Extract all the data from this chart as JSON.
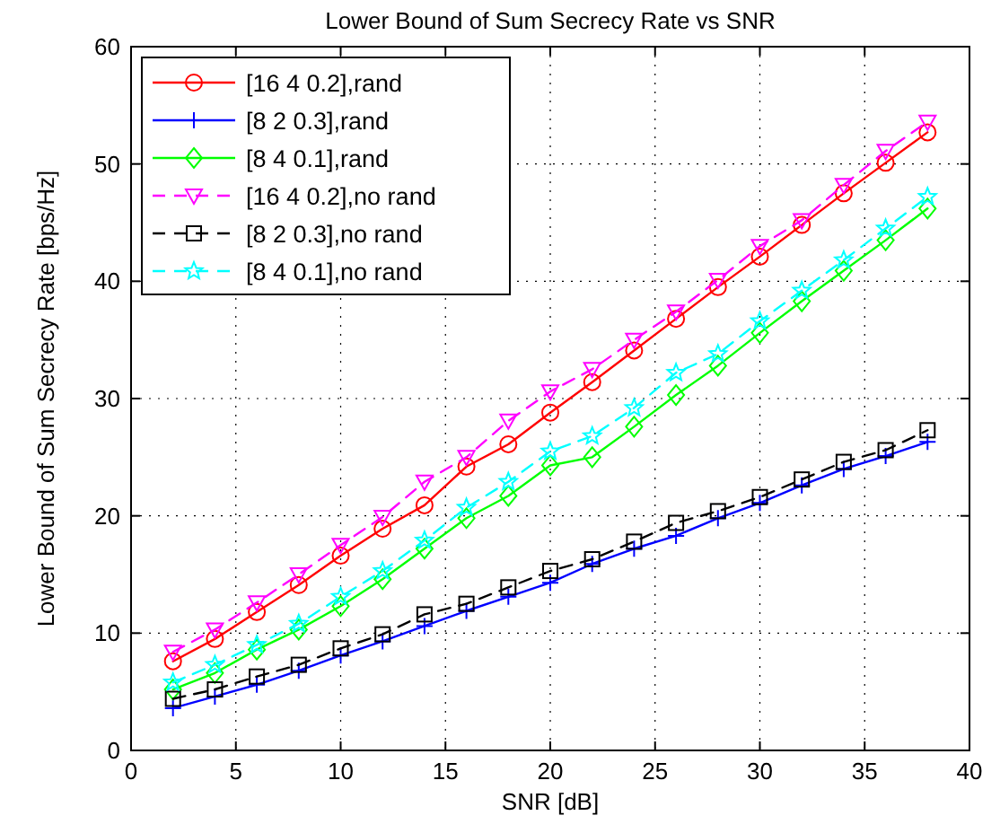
{
  "chart_data": {
    "type": "line",
    "title": "Lower Bound of Sum Secrecy Rate vs SNR",
    "xlabel": "SNR [dB]",
    "ylabel": "Lower Bound of Sum Secrecy Rate [bps/Hz]",
    "x": [
      2,
      4,
      6,
      8,
      10,
      12,
      14,
      16,
      18,
      20,
      22,
      24,
      26,
      28,
      30,
      32,
      34,
      36,
      38
    ],
    "xlim": [
      0,
      40
    ],
    "xticks": [
      0,
      5,
      10,
      15,
      20,
      25,
      30,
      35,
      40
    ],
    "ylim": [
      0,
      60
    ],
    "yticks": [
      0,
      10,
      20,
      30,
      40,
      50,
      60
    ],
    "grid": true,
    "legend": "top left",
    "series": [
      {
        "name": "[16 4 0.2],rand",
        "color": "#ff0000",
        "marker": "circle",
        "line_style": "solid",
        "values": [
          7.6,
          9.5,
          11.8,
          14.1,
          16.6,
          18.9,
          20.9,
          24.2,
          26.1,
          28.8,
          31.4,
          34.1,
          36.8,
          39.5,
          42.1,
          44.8,
          47.5,
          50.1,
          52.7
        ]
      },
      {
        "name": "[8 2 0.3],rand",
        "color": "#0000ff",
        "marker": "cross",
        "line_style": "solid",
        "values": [
          3.6,
          4.6,
          5.6,
          6.8,
          8.1,
          9.3,
          10.6,
          11.9,
          13.1,
          14.3,
          15.9,
          17.2,
          18.3,
          19.8,
          21.1,
          22.6,
          24.0,
          25.1,
          26.3
        ]
      },
      {
        "name": "[8 4 0.1],rand",
        "color": "#00ff00",
        "marker": "diamond",
        "line_style": "solid",
        "values": [
          5.2,
          6.6,
          8.6,
          10.3,
          12.3,
          14.6,
          17.2,
          19.8,
          21.7,
          24.3,
          25.0,
          27.6,
          30.3,
          32.8,
          35.6,
          38.3,
          40.9,
          43.5,
          46.2
        ]
      },
      {
        "name": "[16 4 0.2],no rand",
        "color": "#ff00ff",
        "marker": "triangle",
        "line_style": "dashed",
        "values": [
          8.4,
          10.3,
          12.6,
          15.0,
          17.5,
          19.9,
          22.9,
          25.0,
          28.1,
          30.6,
          32.5,
          35.0,
          37.4,
          40.1,
          43.0,
          45.2,
          48.2,
          51.1,
          53.6
        ]
      },
      {
        "name": "[8 2 0.3],no rand",
        "color": "#000000",
        "marker": "square",
        "line_style": "dashed",
        "values": [
          4.4,
          5.2,
          6.3,
          7.3,
          8.7,
          9.9,
          11.6,
          12.5,
          13.9,
          15.3,
          16.3,
          17.8,
          19.4,
          20.4,
          21.6,
          23.1,
          24.6,
          25.6,
          27.3
        ]
      },
      {
        "name": "[8 4 0.1],no rand",
        "color": "#00ffff",
        "marker": "star",
        "line_style": "dashed",
        "values": [
          5.8,
          7.3,
          9.0,
          10.8,
          13.1,
          15.3,
          17.9,
          20.7,
          22.9,
          25.5,
          26.8,
          29.2,
          32.2,
          33.8,
          36.6,
          39.2,
          41.8,
          44.5,
          47.2
        ]
      }
    ]
  }
}
